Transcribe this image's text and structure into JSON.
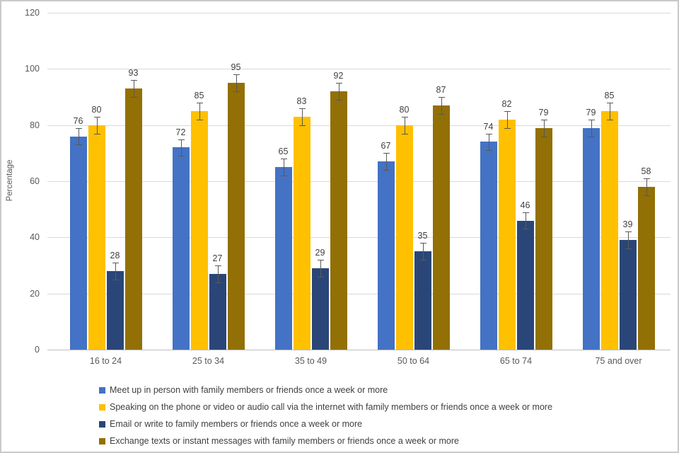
{
  "chart_data": {
    "type": "bar",
    "title": "",
    "xlabel": "",
    "ylabel": "Percentage",
    "ylim": [
      0,
      120
    ],
    "ytick_interval": 20,
    "grid": true,
    "data_labels": true,
    "error_bars": {
      "visible": true,
      "approx_magnitude": 3
    },
    "legend_position": "bottom",
    "categories": [
      "16 to 24",
      "25 to 34",
      "35 to 49",
      "50 to 64",
      "65 to 74",
      "75 and over"
    ],
    "series": [
      {
        "name": "Meet up in person with family members or friends once a week or more",
        "color": "#4472C4",
        "values": [
          76,
          72,
          65,
          67,
          74,
          79
        ]
      },
      {
        "name": "Speaking on the phone or video or audio call via the internet with family members or friends once a week or more",
        "color": "#FFC000",
        "values": [
          80,
          85,
          83,
          80,
          82,
          85
        ]
      },
      {
        "name": "Email or write to family members or friends once a week or more",
        "color": "#2A4678",
        "values": [
          28,
          27,
          29,
          35,
          46,
          39
        ]
      },
      {
        "name": "Exchange texts or instant messages with family members or friends once a week or more",
        "color": "#927006",
        "values": [
          93,
          95,
          92,
          87,
          79,
          58
        ]
      }
    ],
    "colors": {
      "gridline": "#d9d9d9",
      "axis_line": "#bfbfbf",
      "tick_text": "#595959",
      "value_label_text": "#404040",
      "error_bar": "#595959",
      "legend_text": "#404040"
    }
  }
}
